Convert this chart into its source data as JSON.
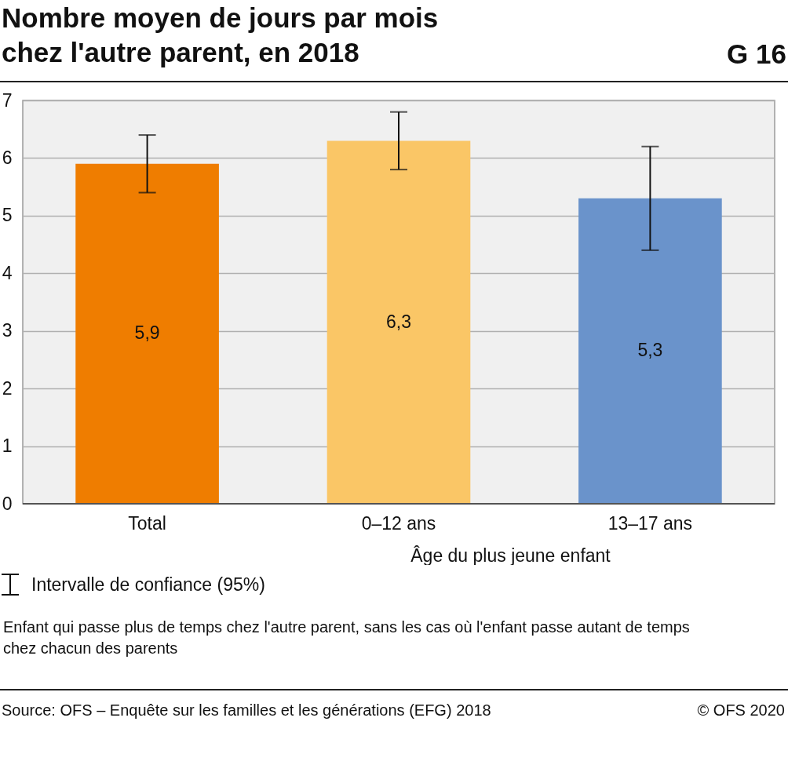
{
  "chart_data": {
    "type": "bar",
    "title": "Nombre moyen de jours par mois chez l'autre parent, en 2018",
    "xlabel": "Âge du plus jeune enfant",
    "categories": [
      "Total",
      "0–12 ans",
      "13–17 ans"
    ],
    "values": [
      5.9,
      6.3,
      5.3
    ],
    "colors": [
      "#ef7d00",
      "#fac666",
      "#6a93cb"
    ],
    "errors": [
      [
        5.4,
        6.4
      ],
      [
        5.8,
        6.8
      ],
      [
        4.4,
        6.2
      ]
    ],
    "ylim": [
      0,
      7
    ],
    "yticks": [
      0,
      1,
      2,
      3,
      4,
      5,
      6,
      7
    ],
    "grid": "y",
    "value_labels": [
      "5,9",
      "6,3",
      "5,3"
    ],
    "annotations": [
      "G 16",
      "Intervalle de confiance (95%)",
      "Enfant qui passe plus de temps chez l'autre parent, sans les cas où l'enfant passe autant de temps chez chacun des parents",
      "Source: OFS – Enquête sur les familles et les générations (EFG) 2018",
      "© OFS 2020"
    ]
  }
}
